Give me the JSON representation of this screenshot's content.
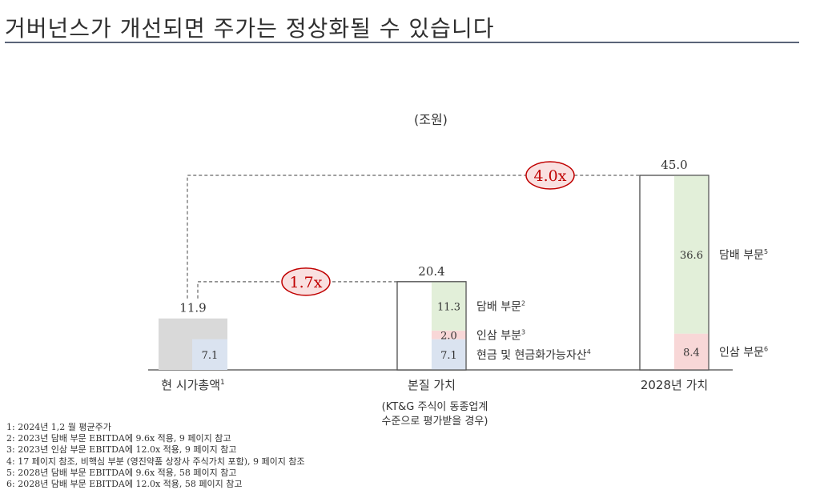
{
  "page": {
    "title": "거버넌스가 개선되면 주가는 정상화될 수 있습니다",
    "unit": "(조원)"
  },
  "chart_data": {
    "type": "bar",
    "stacked": true,
    "categories": [
      {
        "label": "현 시가총액",
        "sup": "1",
        "sublabel": []
      },
      {
        "label": "본질 가치",
        "sup": "",
        "sublabel": [
          "(KT&G 주식이 동종업계",
          "수준으로 평가받을 경우)"
        ]
      },
      {
        "label": "2028년 가치",
        "sup": "",
        "sublabel": []
      }
    ],
    "totals": [
      "11.9",
      "20.4",
      "45.0"
    ],
    "total_values": [
      11.9,
      20.4,
      45.0
    ],
    "segments": [
      [
        {
          "name": "",
          "value": 4.8,
          "label": "",
          "color": "#d9d9d9"
        },
        {
          "name": "",
          "value": 7.1,
          "label": "7.1",
          "color": "#dae3f0"
        }
      ],
      [
        {
          "name": "현금 및 현금화가능자산",
          "sup": "4",
          "value": 7.1,
          "label": "7.1",
          "color": "#dae3f0"
        },
        {
          "name": "인삼 부분",
          "sup": "3",
          "value": 2.0,
          "label": "2.0",
          "color": "#f8d7d7"
        },
        {
          "name": "담배 부문",
          "sup": "2",
          "value": 11.3,
          "label": "11.3",
          "color": "#e2efd9"
        }
      ],
      [
        {
          "name": "인삼 부문",
          "sup": "6",
          "value": 8.4,
          "label": "8.4",
          "color": "#f8d7d7"
        },
        {
          "name": "담배 부문",
          "sup": "5",
          "value": 36.6,
          "label": "36.6",
          "color": "#e2efd9"
        }
      ]
    ],
    "multiples": [
      {
        "label": "1.7x",
        "from": 0,
        "to": 1
      },
      {
        "label": "4.0x",
        "from": 0,
        "to": 2
      }
    ],
    "colors": {
      "multiple_ring": "#c00000",
      "multiple_fill": "#f9e0e0",
      "axis": "#666666"
    }
  },
  "footnotes": [
    "1: 2024년 1,2 월 평균주가",
    "2: 2023년 담배 부문 EBITDA에 9.6x 적용, 9 페이지 참고",
    "3: 2023년 인삼 부문 EBITDA에 12.0x 적용, 9 페이지 참고",
    "4: 17 페이지 참조, 비핵심 부분 (영진약품 상장사 주식가치 포함), 9 페이지 참조",
    "5: 2028년 담배 부문 EBITDA에 9.6x 적용, 58 페이지 참고",
    "6: 2028년 담배 부문 EBITDA에 12.0x 적용, 58 페이지 참고"
  ]
}
